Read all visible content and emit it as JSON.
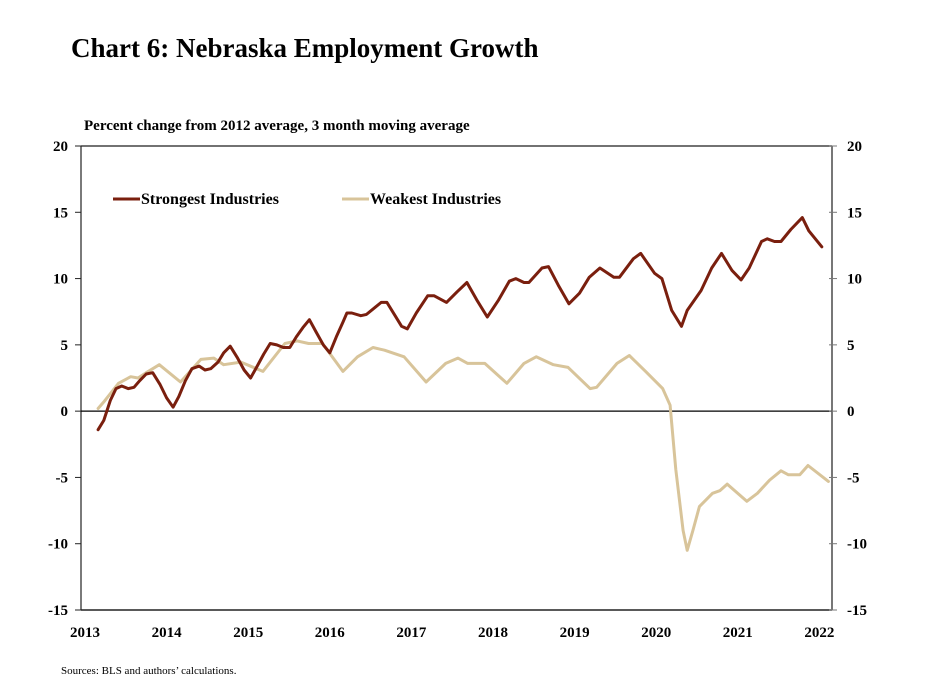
{
  "title": "Chart 6: Nebraska Employment Growth",
  "subtitle": "Percent change from 2012 average, 3 month moving average",
  "source": "Sources: BLS  and authors’ calculations.",
  "chart_data": {
    "type": "line",
    "title": "Chart 6: Nebraska Employment Growth",
    "ylabel": "Percent change from 2012 average, 3 month moving average",
    "xlabel": "",
    "xlim": [
      2013,
      2022
    ],
    "ylim": [
      -15,
      20
    ],
    "x_ticks": [
      "2013",
      "2014",
      "2015",
      "2016",
      "2017",
      "2018",
      "2019",
      "2020",
      "2021",
      "2022"
    ],
    "y_ticks_left": [
      "20",
      "15",
      "10",
      "5",
      "0",
      "-5",
      "-10",
      "-15"
    ],
    "y_ticks_right": [
      "20",
      "15",
      "10",
      "5",
      "0",
      "-5",
      "-10",
      "-15"
    ],
    "y_tick_values": [
      20,
      15,
      10,
      5,
      0,
      -5,
      -10,
      -15
    ],
    "zero_line": true,
    "grid": false,
    "legend_position": "top-left",
    "series": [
      {
        "name": "Strongest Industries",
        "color": "#7a1f0e",
        "points": [
          [
            2013.16,
            -1.4
          ],
          [
            2013.23,
            -0.7
          ],
          [
            2013.31,
            0.8
          ],
          [
            2013.38,
            1.7
          ],
          [
            2013.45,
            1.9
          ],
          [
            2013.53,
            1.7
          ],
          [
            2013.6,
            1.8
          ],
          [
            2013.67,
            2.3
          ],
          [
            2013.75,
            2.8
          ],
          [
            2013.83,
            2.9
          ],
          [
            2013.92,
            2.0
          ],
          [
            2014.0,
            1.0
          ],
          [
            2014.08,
            0.3
          ],
          [
            2014.15,
            1.1
          ],
          [
            2014.23,
            2.3
          ],
          [
            2014.31,
            3.2
          ],
          [
            2014.4,
            3.4
          ],
          [
            2014.47,
            3.1
          ],
          [
            2014.54,
            3.2
          ],
          [
            2014.63,
            3.7
          ],
          [
            2014.7,
            4.4
          ],
          [
            2014.78,
            4.9
          ],
          [
            2014.87,
            4.0
          ],
          [
            2014.95,
            3.1
          ],
          [
            2015.03,
            2.5
          ],
          [
            2015.11,
            3.4
          ],
          [
            2015.19,
            4.3
          ],
          [
            2015.27,
            5.1
          ],
          [
            2015.35,
            5.0
          ],
          [
            2015.43,
            4.8
          ],
          [
            2015.51,
            4.8
          ],
          [
            2015.59,
            5.6
          ],
          [
            2015.67,
            6.3
          ],
          [
            2015.75,
            6.9
          ],
          [
            2015.83,
            6.0
          ],
          [
            2015.92,
            5.0
          ],
          [
            2016.0,
            4.4
          ],
          [
            2016.08,
            5.6
          ],
          [
            2016.16,
            6.7
          ],
          [
            2016.21,
            7.4
          ],
          [
            2016.27,
            7.4
          ],
          [
            2016.38,
            7.2
          ],
          [
            2016.45,
            7.3
          ],
          [
            2016.55,
            7.8
          ],
          [
            2016.63,
            8.2
          ],
          [
            2016.7,
            8.2
          ],
          [
            2016.8,
            7.2
          ],
          [
            2016.88,
            6.4
          ],
          [
            2016.95,
            6.2
          ],
          [
            2017.06,
            7.4
          ],
          [
            2017.2,
            8.7
          ],
          [
            2017.28,
            8.7
          ],
          [
            2017.43,
            8.2
          ],
          [
            2017.56,
            9.0
          ],
          [
            2017.68,
            9.7
          ],
          [
            2017.8,
            8.4
          ],
          [
            2017.93,
            7.1
          ],
          [
            2018.07,
            8.4
          ],
          [
            2018.2,
            9.8
          ],
          [
            2018.28,
            10.0
          ],
          [
            2018.38,
            9.7
          ],
          [
            2018.44,
            9.7
          ],
          [
            2018.6,
            10.8
          ],
          [
            2018.68,
            10.9
          ],
          [
            2018.8,
            9.5
          ],
          [
            2018.93,
            8.1
          ],
          [
            2019.06,
            8.9
          ],
          [
            2019.18,
            10.1
          ],
          [
            2019.31,
            10.8
          ],
          [
            2019.48,
            10.1
          ],
          [
            2019.55,
            10.1
          ],
          [
            2019.72,
            11.5
          ],
          [
            2019.81,
            11.9
          ],
          [
            2019.98,
            10.4
          ],
          [
            2020.07,
            10.0
          ],
          [
            2020.19,
            7.6
          ],
          [
            2020.31,
            6.4
          ],
          [
            2020.38,
            7.6
          ],
          [
            2020.55,
            9.1
          ],
          [
            2020.68,
            10.8
          ],
          [
            2020.8,
            11.9
          ],
          [
            2020.93,
            10.6
          ],
          [
            2021.04,
            9.9
          ],
          [
            2021.14,
            10.8
          ],
          [
            2021.29,
            12.8
          ],
          [
            2021.36,
            13.0
          ],
          [
            2021.45,
            12.8
          ],
          [
            2021.53,
            12.8
          ],
          [
            2021.65,
            13.7
          ],
          [
            2021.79,
            14.6
          ],
          [
            2021.87,
            13.6
          ],
          [
            2022.03,
            12.4
          ]
        ]
      },
      {
        "name": "Weakest Industries",
        "color": "#d8c49a",
        "points": [
          [
            2013.16,
            0.2
          ],
          [
            2013.23,
            0.7
          ],
          [
            2013.41,
            2.1
          ],
          [
            2013.56,
            2.6
          ],
          [
            2013.65,
            2.5
          ],
          [
            2013.75,
            2.9
          ],
          [
            2013.91,
            3.5
          ],
          [
            2014.17,
            2.2
          ],
          [
            2014.42,
            3.9
          ],
          [
            2014.58,
            4.0
          ],
          [
            2014.7,
            3.5
          ],
          [
            2014.91,
            3.7
          ],
          [
            2015.18,
            3.0
          ],
          [
            2015.45,
            5.1
          ],
          [
            2015.6,
            5.3
          ],
          [
            2015.74,
            5.1
          ],
          [
            2015.91,
            5.1
          ],
          [
            2016.16,
            3.0
          ],
          [
            2016.34,
            4.1
          ],
          [
            2016.53,
            4.8
          ],
          [
            2016.67,
            4.6
          ],
          [
            2016.91,
            4.1
          ],
          [
            2017.18,
            2.2
          ],
          [
            2017.42,
            3.6
          ],
          [
            2017.57,
            4.0
          ],
          [
            2017.69,
            3.6
          ],
          [
            2017.9,
            3.6
          ],
          [
            2018.17,
            2.1
          ],
          [
            2018.38,
            3.6
          ],
          [
            2018.53,
            4.1
          ],
          [
            2018.74,
            3.5
          ],
          [
            2018.92,
            3.3
          ],
          [
            2019.19,
            1.7
          ],
          [
            2019.27,
            1.8
          ],
          [
            2019.52,
            3.6
          ],
          [
            2019.67,
            4.2
          ],
          [
            2019.87,
            3.0
          ],
          [
            2020.08,
            1.7
          ],
          [
            2020.17,
            0.45
          ],
          [
            2020.24,
            -4.4
          ],
          [
            2020.33,
            -9.0
          ],
          [
            2020.38,
            -10.5
          ],
          [
            2020.45,
            -9.0
          ],
          [
            2020.53,
            -7.2
          ],
          [
            2020.69,
            -6.2
          ],
          [
            2020.78,
            -6.0
          ],
          [
            2020.87,
            -5.5
          ],
          [
            2021.11,
            -6.8
          ],
          [
            2021.24,
            -6.2
          ],
          [
            2021.39,
            -5.2
          ],
          [
            2021.53,
            -4.5
          ],
          [
            2021.62,
            -4.8
          ],
          [
            2021.76,
            -4.8
          ],
          [
            2021.86,
            -4.1
          ],
          [
            2022.11,
            -5.3
          ]
        ]
      }
    ]
  }
}
